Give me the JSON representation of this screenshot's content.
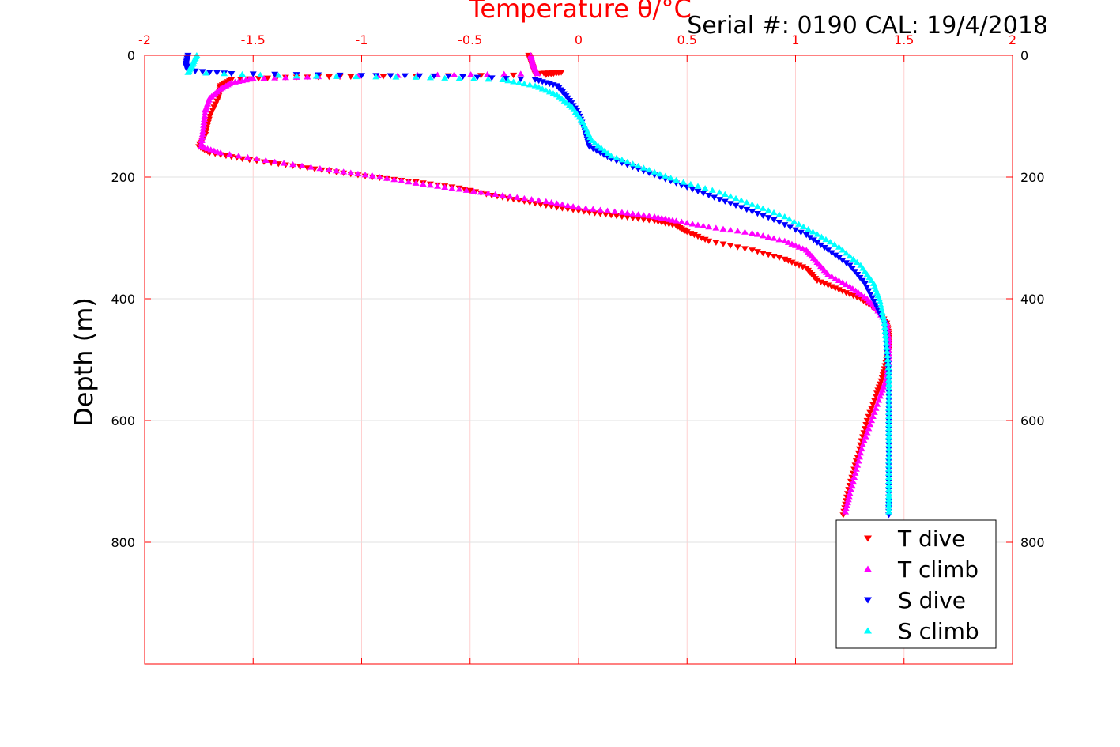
{
  "chart_data": {
    "type": "scatter",
    "title": "",
    "serial_text": "Serial #: 0190  CAL: 19/4/2018",
    "xlabel": "Temperature θ/°C",
    "ylabel": "Depth (m)",
    "xlim": [
      -2,
      2
    ],
    "ylim": [
      0,
      1000
    ],
    "y_reversed": true,
    "x_axis_location": "top",
    "x_ticks": [
      -2,
      -1.5,
      -1,
      -0.5,
      0,
      0.5,
      1,
      1.5,
      2
    ],
    "x_tick_labels": [
      "-2",
      "-1.5",
      "-1",
      "-0.5",
      "0",
      "0.5",
      "1",
      "1.5",
      "2"
    ],
    "y_ticks": [
      0,
      200,
      400,
      600,
      800
    ],
    "y_tick_labels": [
      "0",
      "200",
      "400",
      "600",
      "800"
    ],
    "grid": true,
    "axis_color": "#ff0000",
    "legend_placement": "bottom-right",
    "series": [
      {
        "name": "T dive",
        "marker": "triangle-down",
        "color": "#ff0000",
        "points": [
          [
            -0.23,
            0
          ],
          [
            -0.22,
            10
          ],
          [
            -0.21,
            20
          ],
          [
            -0.2,
            30
          ],
          [
            -0.08,
            28
          ],
          [
            -0.15,
            32
          ],
          [
            -1.05,
            35
          ],
          [
            -1.35,
            36
          ],
          [
            -1.6,
            40
          ],
          [
            -1.65,
            50
          ],
          [
            -1.66,
            70
          ],
          [
            -1.7,
            100
          ],
          [
            -1.72,
            130
          ],
          [
            -1.75,
            150
          ],
          [
            -1.7,
            160
          ],
          [
            -1.55,
            170
          ],
          [
            -1.35,
            180
          ],
          [
            -1.15,
            190
          ],
          [
            -0.95,
            200
          ],
          [
            -0.75,
            208
          ],
          [
            -0.55,
            218
          ],
          [
            -0.4,
            230
          ],
          [
            -0.25,
            240
          ],
          [
            -0.1,
            250
          ],
          [
            0.05,
            258
          ],
          [
            0.2,
            265
          ],
          [
            0.35,
            272
          ],
          [
            0.45,
            280
          ],
          [
            0.5,
            290
          ],
          [
            0.6,
            305
          ],
          [
            0.8,
            320
          ],
          [
            0.95,
            335
          ],
          [
            1.05,
            350
          ],
          [
            1.1,
            370
          ],
          [
            1.2,
            385
          ],
          [
            1.3,
            400
          ],
          [
            1.38,
            420
          ],
          [
            1.42,
            440
          ],
          [
            1.43,
            460
          ],
          [
            1.43,
            480
          ],
          [
            1.42,
            500
          ],
          [
            1.4,
            530
          ],
          [
            1.37,
            560
          ],
          [
            1.33,
            600
          ],
          [
            1.3,
            640
          ],
          [
            1.27,
            680
          ],
          [
            1.24,
            720
          ],
          [
            1.22,
            755
          ]
        ]
      },
      {
        "name": "T climb",
        "marker": "triangle-up",
        "color": "#ff00ff",
        "points": [
          [
            -0.22,
            0
          ],
          [
            -0.21,
            15
          ],
          [
            -0.19,
            30
          ],
          [
            -0.65,
            32
          ],
          [
            -1.2,
            35
          ],
          [
            -1.5,
            38
          ],
          [
            -1.6,
            45
          ],
          [
            -1.65,
            55
          ],
          [
            -1.7,
            70
          ],
          [
            -1.72,
            90
          ],
          [
            -1.73,
            120
          ],
          [
            -1.74,
            150
          ],
          [
            -1.65,
            160
          ],
          [
            -1.4,
            175
          ],
          [
            -1.15,
            188
          ],
          [
            -0.95,
            198
          ],
          [
            -0.75,
            210
          ],
          [
            -0.55,
            220
          ],
          [
            -0.35,
            230
          ],
          [
            -0.15,
            240
          ],
          [
            0.0,
            250
          ],
          [
            0.2,
            258
          ],
          [
            0.35,
            265
          ],
          [
            0.45,
            272
          ],
          [
            0.6,
            282
          ],
          [
            0.8,
            292
          ],
          [
            0.95,
            305
          ],
          [
            1.05,
            320
          ],
          [
            1.1,
            340
          ],
          [
            1.15,
            360
          ],
          [
            1.25,
            380
          ],
          [
            1.33,
            400
          ],
          [
            1.38,
            420
          ],
          [
            1.42,
            440
          ],
          [
            1.43,
            470
          ],
          [
            1.43,
            500
          ],
          [
            1.42,
            530
          ],
          [
            1.39,
            560
          ],
          [
            1.35,
            600
          ],
          [
            1.31,
            640
          ],
          [
            1.28,
            680
          ],
          [
            1.25,
            720
          ],
          [
            1.23,
            750
          ]
        ]
      },
      {
        "name": "S dive",
        "marker": "triangle-down",
        "color": "#0000ff",
        "points": [
          [
            -1.8,
            0
          ],
          [
            -1.81,
            15
          ],
          [
            -1.8,
            25
          ],
          [
            -1.6,
            30
          ],
          [
            -1.0,
            33
          ],
          [
            -0.6,
            34
          ],
          [
            -0.2,
            40
          ],
          [
            -0.1,
            50
          ],
          [
            -0.05,
            70
          ],
          [
            0.0,
            95
          ],
          [
            0.03,
            125
          ],
          [
            0.05,
            150
          ],
          [
            0.15,
            170
          ],
          [
            0.3,
            190
          ],
          [
            0.45,
            210
          ],
          [
            0.6,
            230
          ],
          [
            0.75,
            250
          ],
          [
            0.9,
            270
          ],
          [
            1.05,
            295
          ],
          [
            1.15,
            320
          ],
          [
            1.25,
            345
          ],
          [
            1.32,
            375
          ],
          [
            1.37,
            410
          ],
          [
            1.41,
            440
          ],
          [
            1.42,
            480
          ],
          [
            1.43,
            520
          ],
          [
            1.43,
            560
          ],
          [
            1.43,
            600
          ],
          [
            1.43,
            640
          ],
          [
            1.43,
            680
          ],
          [
            1.43,
            720
          ],
          [
            1.43,
            755
          ]
        ]
      },
      {
        "name": "S climb",
        "marker": "triangle-up",
        "color": "#00ffff",
        "points": [
          [
            -1.76,
            0
          ],
          [
            -1.78,
            15
          ],
          [
            -1.8,
            28
          ],
          [
            -1.3,
            34
          ],
          [
            -0.75,
            36
          ],
          [
            -0.35,
            40
          ],
          [
            -0.2,
            50
          ],
          [
            -0.1,
            65
          ],
          [
            -0.03,
            85
          ],
          [
            0.02,
            110
          ],
          [
            0.06,
            140
          ],
          [
            0.15,
            165
          ],
          [
            0.3,
            185
          ],
          [
            0.45,
            205
          ],
          [
            0.65,
            225
          ],
          [
            0.8,
            245
          ],
          [
            0.95,
            265
          ],
          [
            1.08,
            290
          ],
          [
            1.2,
            315
          ],
          [
            1.3,
            345
          ],
          [
            1.36,
            375
          ],
          [
            1.39,
            405
          ],
          [
            1.41,
            440
          ],
          [
            1.42,
            480
          ],
          [
            1.43,
            520
          ],
          [
            1.43,
            560
          ],
          [
            1.43,
            600
          ],
          [
            1.43,
            640
          ],
          [
            1.43,
            680
          ],
          [
            1.43,
            720
          ],
          [
            1.43,
            750
          ]
        ]
      }
    ]
  }
}
